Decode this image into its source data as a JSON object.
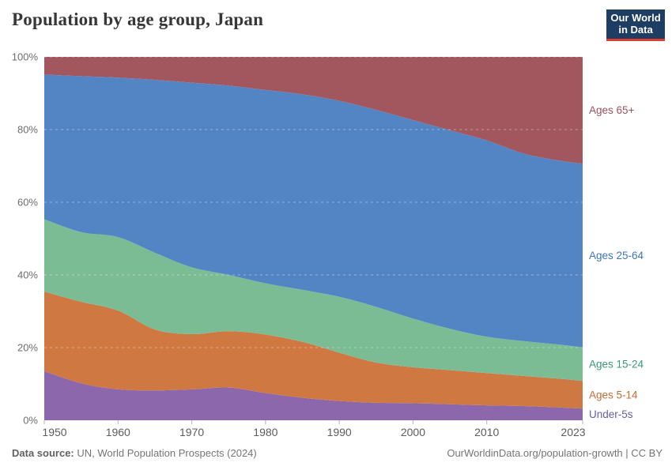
{
  "header": {
    "title": "Population by age group, Japan",
    "logo": {
      "line1": "Our World",
      "line2": "in Data",
      "bg_color": "#1d3d63",
      "accent_color": "#dc3e32"
    }
  },
  "footer": {
    "source_label": "Data source:",
    "source_text": "UN, World Population Prospects (2024)",
    "credit": "OurWorldinData.org/population-growth | CC BY"
  },
  "chart_data": {
    "type": "area",
    "stacked": true,
    "title": "Population by age group, Japan",
    "unit": "%",
    "ylim": [
      0,
      100
    ],
    "yticks": [
      0,
      20,
      40,
      60,
      80,
      100
    ],
    "ytick_labels": [
      "0%",
      "20%",
      "40%",
      "60%",
      "80%",
      "100%"
    ],
    "xticks": [
      1950,
      1960,
      1970,
      1980,
      1990,
      2000,
      2010,
      2023
    ],
    "xtick_labels": [
      "1950",
      "1960",
      "1970",
      "1980",
      "1990",
      "2000",
      "2010",
      "2023"
    ],
    "grid": "dashed-horizontal",
    "legend_position": "right-edge-labels",
    "x": [
      1950,
      1955,
      1960,
      1965,
      1970,
      1975,
      1980,
      1985,
      1990,
      1995,
      2000,
      2005,
      2010,
      2015,
      2020,
      2023
    ],
    "series": [
      {
        "name": "Under-5s",
        "color": "#8c67ab",
        "label_color": "#6b5ca8",
        "values": [
          13.5,
          10.2,
          8.5,
          8.2,
          8.5,
          9.0,
          7.5,
          6.2,
          5.3,
          4.8,
          4.7,
          4.4,
          4.1,
          3.9,
          3.5,
          3.2
        ]
      },
      {
        "name": "Ages 5-14",
        "color": "#cf7842",
        "label_color": "#c76b33",
        "values": [
          21.9,
          22.4,
          21.7,
          16.8,
          15.2,
          15.5,
          16.1,
          15.4,
          13.3,
          11.1,
          9.9,
          9.4,
          8.9,
          8.3,
          7.9,
          7.6
        ]
      },
      {
        "name": "Ages 15-24",
        "color": "#7cbc95",
        "label_color": "#3b9678",
        "values": [
          19.9,
          19.2,
          20.2,
          21.1,
          18.4,
          15.5,
          14.1,
          14.3,
          15.4,
          15.3,
          13.4,
          11.4,
          10.0,
          9.6,
          9.4,
          9.3
        ]
      },
      {
        "name": "Ages 25-64",
        "color": "#5385c5",
        "label_color": "#3d76c0",
        "values": [
          39.8,
          42.9,
          43.9,
          47.6,
          50.8,
          52.1,
          53.2,
          53.8,
          53.9,
          54.2,
          54.6,
          54.6,
          54.0,
          51.6,
          50.6,
          50.5
        ]
      },
      {
        "name": "Ages 65+",
        "color": "#a2575e",
        "label_color": "#9e525b",
        "values": [
          4.9,
          5.3,
          5.7,
          6.3,
          7.1,
          7.9,
          9.1,
          10.3,
          12.1,
          14.6,
          17.4,
          20.2,
          23.0,
          26.6,
          28.6,
          29.4
        ]
      }
    ]
  }
}
